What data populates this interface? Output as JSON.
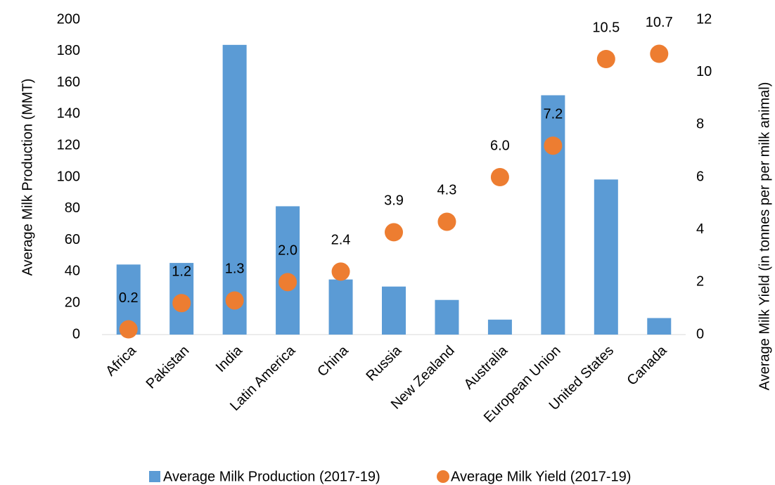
{
  "chart_data": {
    "type": "bar",
    "categories": [
      "Africa",
      "Pakistan",
      "India",
      "Latin America",
      "China",
      "Russia",
      "New Zealand",
      "Australia",
      "European Union",
      "United States",
      "Canada"
    ],
    "series": [
      {
        "name": "Average Milk Production (2017-19)",
        "type": "bar",
        "color": "#5b9bd5",
        "values": [
          44.5,
          45.5,
          184,
          81.5,
          35,
          30.5,
          22,
          9.5,
          152,
          98.5,
          10.5
        ]
      },
      {
        "name": "Average Milk Yield (2017-19)",
        "type": "scatter",
        "axis": "y2",
        "color": "#ed7d31",
        "values": [
          0.2,
          1.2,
          1.3,
          2.0,
          2.4,
          3.9,
          4.3,
          6.0,
          7.2,
          10.5,
          10.7
        ],
        "value_labels": [
          "0.2",
          "1.2",
          "1.3",
          "2.0",
          "2.4",
          "3.9",
          "4.3",
          "6.0",
          "7.2",
          "10.5",
          "10.7"
        ]
      }
    ],
    "ylabel": "Average Milk Production (MMT)",
    "y2label": "Average Milk Yield (in tonnes per per milk animal)",
    "ylim": [
      0,
      200
    ],
    "yticks": [
      0,
      20,
      40,
      60,
      80,
      100,
      120,
      140,
      160,
      180,
      200
    ],
    "y2lim": [
      0,
      12
    ],
    "y2ticks": [
      0,
      2,
      4,
      6,
      8,
      10,
      12
    ],
    "grid": false,
    "legend": "bottom"
  }
}
